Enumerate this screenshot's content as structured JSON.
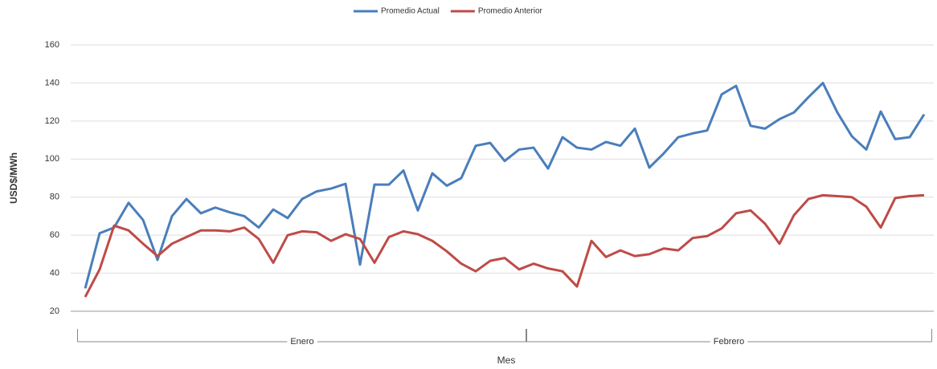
{
  "chart_data": {
    "type": "line",
    "x_label": "Mes",
    "y_label": "USD$/MWh",
    "categories": [
      "Enero",
      "Enero",
      "Enero",
      "Enero",
      "Enero",
      "Enero",
      "Enero",
      "Enero",
      "Enero",
      "Enero",
      "Enero",
      "Enero",
      "Enero",
      "Enero",
      "Enero",
      "Enero",
      "Enero",
      "Enero",
      "Enero",
      "Enero",
      "Enero",
      "Enero",
      "Enero",
      "Enero",
      "Enero",
      "Enero",
      "Enero",
      "Enero",
      "Enero",
      "Enero",
      "Enero",
      "Febrero",
      "Febrero",
      "Febrero",
      "Febrero",
      "Febrero",
      "Febrero",
      "Febrero",
      "Febrero",
      "Febrero",
      "Febrero",
      "Febrero",
      "Febrero",
      "Febrero",
      "Febrero",
      "Febrero",
      "Febrero",
      "Febrero",
      "Febrero",
      "Febrero",
      "Febrero",
      "Febrero",
      "Febrero",
      "Febrero",
      "Febrero",
      "Febrero",
      "Febrero",
      "Febrero",
      "Febrero"
    ],
    "series": [
      {
        "name": "Promedio Actual",
        "color": "#4a7ebb",
        "values": [
          32,
          61,
          64,
          77,
          68,
          47,
          70,
          79,
          71.5,
          74.5,
          72,
          70,
          64,
          73.5,
          69,
          79,
          83,
          84.5,
          87,
          44.5,
          86.6,
          86.6,
          94,
          73,
          92.5,
          86,
          90,
          107,
          108.5,
          99,
          105,
          106,
          95,
          111.5,
          106,
          105,
          109,
          107,
          116,
          95.5,
          103,
          111.5,
          113.5,
          115,
          134,
          138.5,
          117.5,
          116,
          121,
          124.5,
          132.5,
          140,
          124.5,
          112,
          105,
          125,
          110.5,
          111.5,
          123.5
        ]
      },
      {
        "name": "Promedio Anterior",
        "color": "#be4b48",
        "values": [
          27.5,
          42,
          65,
          62.5,
          55.5,
          49,
          55.5,
          59,
          62.5,
          62.5,
          62,
          64,
          58,
          45.5,
          60,
          62,
          61.5,
          57,
          60.5,
          58,
          45.5,
          59,
          62,
          60.5,
          57,
          51.5,
          45,
          41,
          46.5,
          48,
          42,
          45,
          42.5,
          41,
          33,
          57,
          48.5,
          52,
          49,
          50,
          53,
          52,
          58.5,
          59.5,
          63.5,
          71.5,
          73,
          66,
          55.5,
          70.5,
          79,
          81,
          80.5,
          80,
          75,
          64,
          79.5,
          80.5,
          81
        ]
      }
    ],
    "ylim": [
      20,
      160
    ],
    "yticks": [
      20,
      40,
      60,
      80,
      100,
      120,
      140,
      160
    ],
    "grid": true,
    "legend": "top"
  }
}
